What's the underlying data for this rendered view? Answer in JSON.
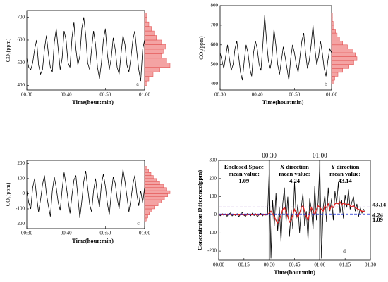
{
  "chart_data": [
    {
      "type": "line",
      "panel": "a",
      "x_label": "Time(hour:min)",
      "y_label": "CO₂(ppm)",
      "xlim": [
        30,
        60
      ],
      "xticks": [
        {
          "value": 30,
          "label": "00:30"
        },
        {
          "value": 40,
          "label": "00:40"
        },
        {
          "value": 50,
          "label": "00:50"
        },
        {
          "value": 60,
          "label": "01:00"
        }
      ],
      "ylim": [
        380,
        730
      ],
      "yticks": [
        400,
        500,
        600,
        700
      ],
      "x": [
        30,
        30.5,
        31,
        31.5,
        32,
        32.5,
        33,
        33.5,
        34,
        34.5,
        35,
        35.5,
        36,
        36.5,
        37,
        37.5,
        38,
        38.5,
        39,
        39.5,
        40,
        40.5,
        41,
        41.5,
        42,
        42.5,
        43,
        43.5,
        44,
        44.5,
        45,
        45.5,
        46,
        46.5,
        47,
        47.5,
        48,
        48.5,
        49,
        49.5,
        50,
        50.5,
        51,
        51.5,
        52,
        52.5,
        53,
        53.5,
        54,
        54.5,
        55,
        55.5,
        56,
        56.5,
        57,
        57.5,
        58,
        58.5,
        59,
        59.5,
        60
      ],
      "series": [
        {
          "color": "#000000",
          "values": [
            520,
            480,
            470,
            500,
            560,
            600,
            490,
            450,
            470,
            560,
            620,
            540,
            480,
            460,
            590,
            650,
            560,
            470,
            520,
            640,
            600,
            500,
            480,
            610,
            680,
            560,
            490,
            530,
            650,
            700,
            620,
            500,
            470,
            560,
            640,
            580,
            480,
            430,
            500,
            600,
            650,
            540,
            470,
            520,
            610,
            560,
            480,
            450,
            540,
            620,
            580,
            490,
            460,
            520,
            600,
            640,
            550,
            470,
            420,
            560,
            600
          ]
        }
      ],
      "histogram": {
        "color": "#f4a3a3",
        "edge": "#e04848",
        "bins": [
          400,
          420,
          440,
          460,
          480,
          500,
          520,
          540,
          560,
          580,
          600,
          620,
          640,
          660,
          680,
          700,
          720
        ],
        "counts": [
          3,
          5,
          10,
          18,
          30,
          26,
          20,
          22,
          25,
          20,
          14,
          12,
          8,
          5,
          3,
          2
        ]
      }
    },
    {
      "type": "line",
      "panel": "b",
      "x_label": "Time(hour:min)",
      "y_label": "CO₂(ppm)",
      "xlim": [
        30,
        60
      ],
      "xticks": [
        {
          "value": 30,
          "label": "00:30"
        },
        {
          "value": 40,
          "label": "00:40"
        },
        {
          "value": 50,
          "label": "00:50"
        },
        {
          "value": 60,
          "label": "01:00"
        }
      ],
      "ylim": [
        370,
        800
      ],
      "yticks": [
        400,
        500,
        600,
        700,
        800
      ],
      "x": [
        30,
        30.5,
        31,
        31.5,
        32,
        32.5,
        33,
        33.5,
        34,
        34.5,
        35,
        35.5,
        36,
        36.5,
        37,
        37.5,
        38,
        38.5,
        39,
        39.5,
        40,
        40.5,
        41,
        41.5,
        42,
        42.5,
        43,
        43.5,
        44,
        44.5,
        45,
        45.5,
        46,
        46.5,
        47,
        47.5,
        48,
        48.5,
        49,
        49.5,
        50,
        50.5,
        51,
        51.5,
        52,
        52.5,
        53,
        53.5,
        54,
        54.5,
        55,
        55.5,
        56,
        56.5,
        57,
        57.5,
        58,
        58.5,
        59,
        59.5,
        60
      ],
      "series": [
        {
          "color": "#000000",
          "values": [
            560,
            520,
            480,
            540,
            600,
            530,
            470,
            500,
            580,
            620,
            540,
            460,
            420,
            520,
            600,
            560,
            480,
            440,
            560,
            620,
            580,
            500,
            470,
            600,
            750,
            620,
            520,
            480,
            540,
            680,
            600,
            500,
            450,
            520,
            590,
            540,
            480,
            420,
            530,
            600,
            560,
            500,
            460,
            540,
            620,
            660,
            560,
            480,
            520,
            600,
            700,
            580,
            500,
            540,
            620,
            560,
            480,
            440,
            520,
            580,
            560
          ]
        }
      ],
      "histogram": {
        "color": "#f4a3a3",
        "edge": "#e04848",
        "bins": [
          400,
          420,
          440,
          460,
          480,
          500,
          520,
          540,
          560,
          580,
          600,
          620,
          640,
          660,
          680,
          700,
          720,
          740,
          760
        ],
        "counts": [
          2,
          4,
          8,
          14,
          22,
          28,
          32,
          30,
          26,
          20,
          14,
          10,
          7,
          5,
          3,
          2,
          1,
          1
        ]
      }
    },
    {
      "type": "line",
      "panel": "c",
      "x_label": "Time(hour:min)",
      "y_label": "CO₂(ppm)",
      "xlim": [
        30,
        60
      ],
      "xticks": [
        {
          "value": 30,
          "label": "00:30"
        },
        {
          "value": 40,
          "label": "00:40"
        },
        {
          "value": 50,
          "label": "00:50"
        },
        {
          "value": 60,
          "label": "01:00"
        }
      ],
      "ylim": [
        -230,
        220
      ],
      "yticks": [
        -200,
        -100,
        0,
        100,
        200
      ],
      "x": [
        30,
        30.5,
        31,
        31.5,
        32,
        32.5,
        33,
        33.5,
        34,
        34.5,
        35,
        35.5,
        36,
        36.5,
        37,
        37.5,
        38,
        38.5,
        39,
        39.5,
        40,
        40.5,
        41,
        41.5,
        42,
        42.5,
        43,
        43.5,
        44,
        44.5,
        45,
        45.5,
        46,
        46.5,
        47,
        47.5,
        48,
        48.5,
        49,
        49.5,
        50,
        50.5,
        51,
        51.5,
        52,
        52.5,
        53,
        53.5,
        54,
        54.5,
        55,
        55.5,
        56,
        56.5,
        57,
        57.5,
        58,
        58.5,
        59,
        59.5,
        60
      ],
      "series": [
        {
          "color": "#000000",
          "values": [
            20,
            -60,
            -100,
            40,
            100,
            -20,
            -120,
            -40,
            60,
            120,
            0,
            -80,
            -150,
            20,
            110,
            40,
            -60,
            -110,
            30,
            140,
            60,
            -40,
            -130,
            -10,
            90,
            120,
            -20,
            -160,
            -50,
            80,
            150,
            40,
            -70,
            -120,
            20,
            100,
            -10,
            -90,
            60,
            130,
            50,
            -60,
            -140,
            0,
            110,
            70,
            -30,
            -100,
            40,
            160,
            80,
            -20,
            -120,
            -40,
            60,
            120,
            0,
            -80,
            20,
            -60,
            40
          ]
        }
      ],
      "histogram": {
        "color": "#f4a3a3",
        "edge": "#e04848",
        "bins": [
          -180,
          -160,
          -140,
          -120,
          -100,
          -80,
          -60,
          -40,
          -20,
          0,
          20,
          40,
          60,
          80,
          100,
          120,
          140,
          160,
          180
        ],
        "counts": [
          2,
          4,
          6,
          9,
          13,
          17,
          21,
          25,
          29,
          32,
          28,
          24,
          19,
          15,
          11,
          8,
          5,
          3
        ]
      }
    },
    {
      "type": "line",
      "panel": "d",
      "x_label": "Time(hour:min)",
      "y_label": "Concentration Difference(ppm)",
      "xlim": [
        0,
        90
      ],
      "xticks": [
        {
          "value": 0,
          "label": "00:00"
        },
        {
          "value": 15,
          "label": "00:15"
        },
        {
          "value": 30,
          "label": "00:30"
        },
        {
          "value": 45,
          "label": "00:45"
        },
        {
          "value": 60,
          "label": "01:00"
        },
        {
          "value": 75,
          "label": "01:15"
        },
        {
          "value": 90,
          "label": "01:30"
        }
      ],
      "ylim": [
        -250,
        300
      ],
      "yticks": [
        -200,
        -100,
        0,
        100,
        200,
        300
      ],
      "x": [
        0,
        1,
        2,
        3,
        4,
        5,
        6,
        7,
        8,
        9,
        10,
        11,
        12,
        13,
        14,
        15,
        16,
        17,
        18,
        19,
        20,
        21,
        22,
        23,
        24,
        25,
        26,
        27,
        28,
        29,
        30,
        31,
        32,
        33,
        34,
        35,
        36,
        37,
        38,
        39,
        40,
        41,
        42,
        43,
        44,
        45,
        46,
        47,
        48,
        49,
        50,
        51,
        52,
        53,
        54,
        55,
        56,
        57,
        58,
        59,
        60,
        61,
        62,
        63,
        64,
        65,
        66,
        67,
        68,
        69,
        70,
        71,
        72,
        73,
        74,
        75,
        76,
        77,
        78,
        79,
        80,
        81,
        82,
        83,
        84,
        85,
        86,
        87
      ],
      "series": [
        {
          "color": "#000000",
          "values": [
            2,
            -5,
            8,
            -3,
            5,
            -8,
            4,
            10,
            -6,
            3,
            -4,
            6,
            -10,
            5,
            12,
            -3,
            -8,
            7,
            2,
            -5,
            9,
            -4,
            6,
            -12,
            3,
            8,
            -6,
            4,
            -2,
            5,
            250,
            -240,
            80,
            -60,
            120,
            -90,
            40,
            -150,
            60,
            150,
            -40,
            100,
            -120,
            30,
            -80,
            180,
            -20,
            60,
            -100,
            40,
            120,
            -60,
            20,
            -140,
            90,
            30,
            -80,
            160,
            -30,
            70,
            280,
            -240,
            40,
            110,
            -40,
            150,
            20,
            90,
            -30,
            130,
            60,
            180,
            10,
            80,
            -20,
            110,
            40,
            140,
            30,
            70,
            100,
            20,
            60,
            -10,
            40,
            10,
            30,
            20
          ]
        },
        {
          "color": "#e02020",
          "values": [
            0,
            0,
            1,
            0,
            1,
            0,
            1,
            2,
            1,
            0,
            1,
            0,
            -1,
            0,
            1,
            0,
            -1,
            0,
            1,
            0,
            1,
            0,
            1,
            -1,
            0,
            1,
            0,
            0,
            1,
            0,
            10,
            20,
            5,
            -10,
            -30,
            -45,
            -30,
            0,
            30,
            40,
            20,
            -10,
            -40,
            -30,
            0,
            30,
            10,
            -15,
            10,
            40,
            50,
            20,
            -10,
            -30,
            10,
            40,
            20,
            0,
            30,
            50,
            40,
            30,
            20,
            50,
            40,
            60,
            30,
            50,
            40,
            60,
            65,
            60,
            70,
            55,
            65,
            60,
            55,
            60,
            50,
            45,
            50,
            40,
            35,
            30,
            25,
            20,
            20,
            15
          ]
        }
      ],
      "vlines": [
        {
          "value": 30,
          "label": "00:30"
        },
        {
          "value": 60,
          "label": "01:00"
        }
      ],
      "ref_lines": [
        {
          "value": 43.14,
          "label": "43.14",
          "color": "#a070c8",
          "label_color": "#1a2fd0"
        },
        {
          "value": 4.24,
          "label": "4.24",
          "color": "#1a2fd0",
          "label_color": "#1a2fd0"
        },
        {
          "value": 1.09,
          "label": "1.09",
          "color": "#1a2fd0",
          "label_color": "#1a2fd0"
        }
      ],
      "annotations": [
        [
          "Enclosed Space",
          "mean value:",
          "1.09"
        ],
        [
          "X direction",
          "mean value:",
          "4.24"
        ],
        [
          "Y direction",
          "mean value:",
          "43.14"
        ]
      ]
    }
  ]
}
